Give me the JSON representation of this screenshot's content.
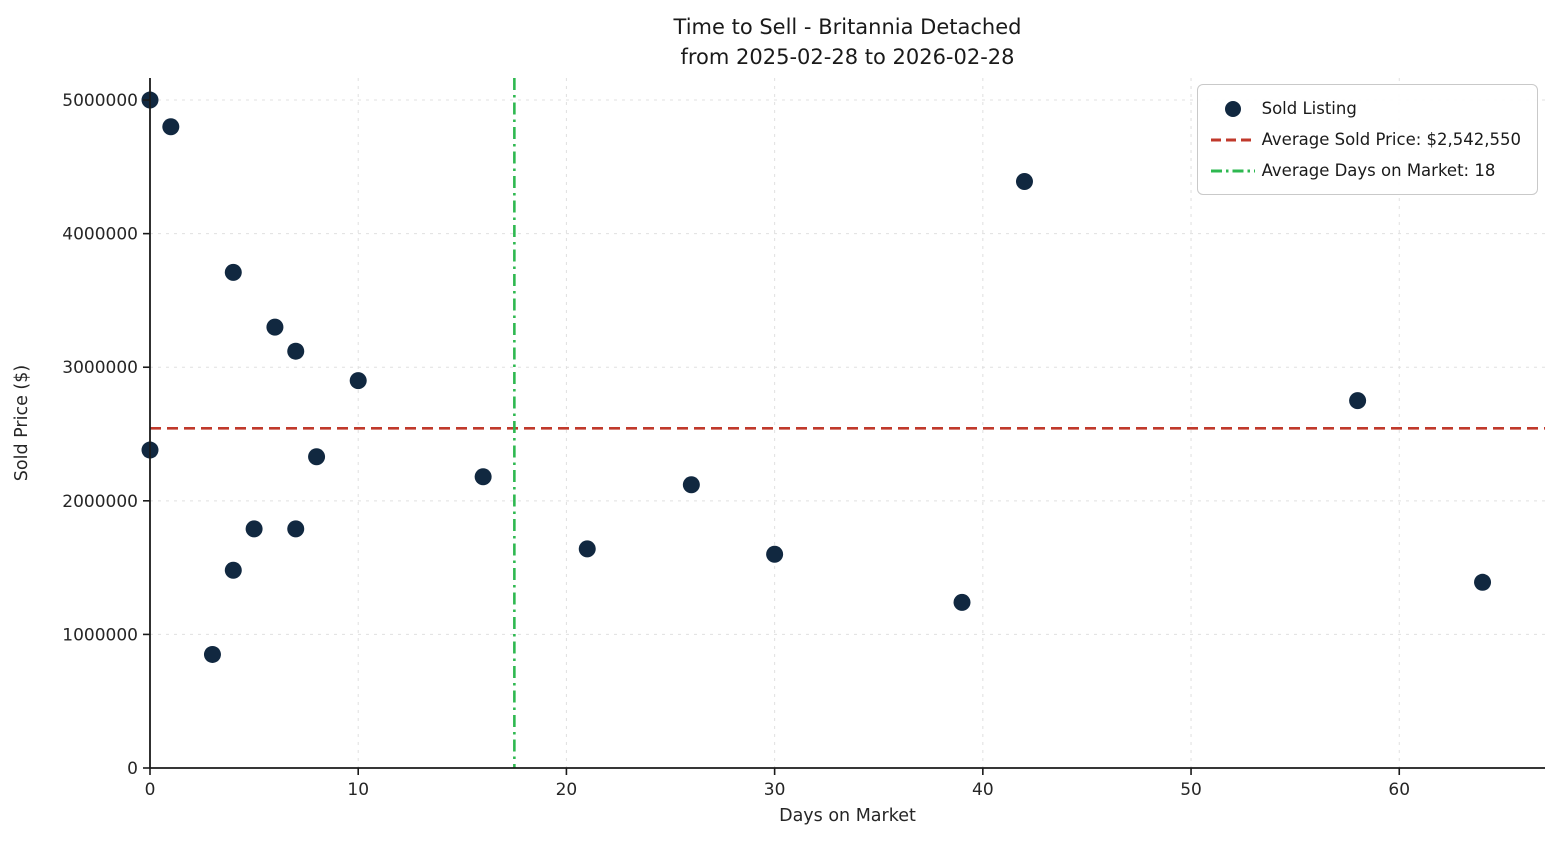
{
  "title": {
    "line1": "Time to Sell - Britannia Detached",
    "line2": "from 2025-02-28 to 2026-02-28"
  },
  "axes": {
    "xlabel": "Days on Market",
    "ylabel": "Sold Price ($)"
  },
  "legend": {
    "items": [
      {
        "label": "Sold Listing",
        "marker": "dot",
        "color": "#112840"
      },
      {
        "label": "Average Sold Price: $2,542,550",
        "marker": "dashed-line",
        "color": "#c0392b"
      },
      {
        "label": "Average Days on Market: 18",
        "marker": "dashdot-line",
        "color": "#2eb850"
      }
    ]
  },
  "chart_data": {
    "type": "scatter",
    "title": "Time to Sell - Britannia Detached from 2025-02-28 to 2026-02-28",
    "xlabel": "Days on Market",
    "ylabel": "Sold Price ($)",
    "series": [
      {
        "name": "Sold Listing",
        "points": [
          {
            "x": 0,
            "y": 5000000
          },
          {
            "x": 1,
            "y": 4800000
          },
          {
            "x": 0,
            "y": 2380000
          },
          {
            "x": 3,
            "y": 850000
          },
          {
            "x": 4,
            "y": 3710000
          },
          {
            "x": 4,
            "y": 1480000
          },
          {
            "x": 5,
            "y": 1790000
          },
          {
            "x": 6,
            "y": 3300000
          },
          {
            "x": 7,
            "y": 3120000
          },
          {
            "x": 7,
            "y": 1790000
          },
          {
            "x": 8,
            "y": 2330000
          },
          {
            "x": 10,
            "y": 2900000
          },
          {
            "x": 16,
            "y": 2180000
          },
          {
            "x": 21,
            "y": 1640000
          },
          {
            "x": 26,
            "y": 2120000
          },
          {
            "x": 30,
            "y": 1600000
          },
          {
            "x": 39,
            "y": 1240000
          },
          {
            "x": 42,
            "y": 4390000
          },
          {
            "x": 58,
            "y": 2750000
          },
          {
            "x": 64,
            "y": 1390000
          }
        ]
      }
    ],
    "reference_lines": {
      "average_sold_price": 2542550,
      "average_days_on_market_label": 18,
      "average_days_on_market_x": 17.5
    },
    "xlim": [
      0,
      67
    ],
    "ylim": [
      0,
      5165000
    ],
    "x_ticks": [
      0,
      10,
      20,
      30,
      40,
      50,
      60
    ],
    "y_ticks": [
      0,
      1000000,
      2000000,
      3000000,
      4000000,
      5000000
    ],
    "grid": true,
    "legend_position": "upper right",
    "colors": {
      "point": "#112840",
      "avg_price_line": "#c0392b",
      "avg_days_line": "#2eb850"
    }
  }
}
